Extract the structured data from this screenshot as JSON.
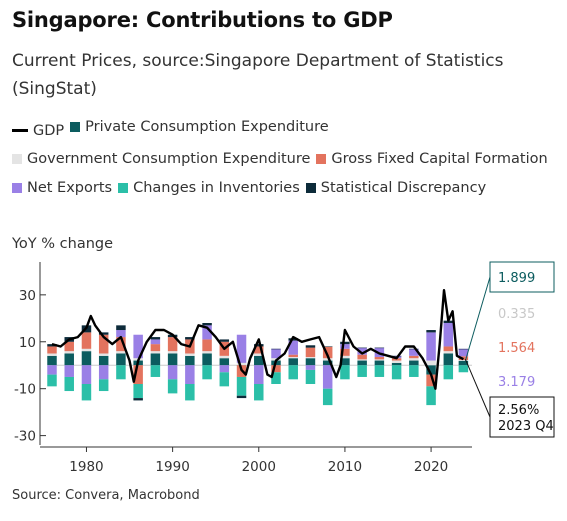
{
  "chart_data": {
    "type": "bar",
    "title": "Singapore: Contributions to GDP",
    "subtitle": "Current Prices, source:Singapore Department of Statistics (SingStat)",
    "ylabel": "YoY % change",
    "source": "Source: Convera, Macrobond",
    "ylim": [
      -34,
      44
    ],
    "xlim": [
      1976,
      2024.75
    ],
    "xticks": [
      1980,
      1990,
      2000,
      2010,
      2020
    ],
    "yticks": [
      30,
      10,
      -10,
      -30
    ],
    "grid": false,
    "legend_position": "top",
    "stacked": true,
    "series": [
      {
        "name": "GDP",
        "kind": "line",
        "color": "#000000",
        "x": [
          1976,
          1977,
          1978,
          1979,
          1980,
          1980.5,
          1981,
          1982,
          1983,
          1984,
          1985,
          1985.5,
          1986,
          1987,
          1988,
          1989,
          1990,
          1991,
          1992,
          1993,
          1994,
          1995,
          1996,
          1997,
          1998,
          1998.5,
          1999,
          2000,
          2001,
          2001.5,
          2002,
          2003,
          2004,
          2005,
          2006,
          2007,
          2008,
          2009,
          2009.5,
          2010,
          2011,
          2012,
          2013,
          2014,
          2015,
          2016,
          2017,
          2018,
          2019,
          2020,
          2020.5,
          2021,
          2021.5,
          2022,
          2022.5,
          2023,
          2023.75
        ],
        "y": [
          9,
          8,
          11,
          12,
          16,
          21,
          17,
          12,
          9,
          12,
          2,
          -7,
          2,
          10,
          15,
          15,
          13,
          9,
          8,
          17,
          16,
          12,
          7,
          10,
          -2,
          -4,
          3,
          11,
          -4,
          -5,
          2,
          5,
          12,
          10,
          11,
          12,
          4,
          -5,
          0,
          15,
          8,
          5,
          7,
          5,
          4,
          3,
          8,
          8,
          3,
          -4,
          -10,
          9,
          32,
          19,
          23,
          4,
          2.56
        ]
      },
      {
        "name": "Private Consumption Expenditure",
        "kind": "bar",
        "color": "#0c5c5f",
        "x": [
          1976,
          1978,
          1980,
          1982,
          1984,
          1986,
          1988,
          1990,
          1992,
          1994,
          1996,
          1998,
          2000,
          2002,
          2004,
          2006,
          2008,
          2010,
          2012,
          2014,
          2016,
          2018,
          2020,
          2022,
          2023.75
        ],
        "y": [
          4,
          5,
          6,
          4,
          5,
          2,
          5,
          5,
          4,
          5,
          3,
          0,
          4,
          2,
          3,
          3,
          2,
          3,
          2,
          2,
          1,
          2,
          -4,
          5,
          1.899
        ]
      },
      {
        "name": "Government Consumption Expenditure",
        "kind": "bar",
        "color": "#e4e4e4",
        "x": [
          1976,
          1978,
          1980,
          1982,
          1984,
          1986,
          1988,
          1990,
          1992,
          1994,
          1996,
          1998,
          2000,
          2002,
          2004,
          2006,
          2008,
          2010,
          2012,
          2014,
          2016,
          2018,
          2020,
          2022,
          2023.75
        ],
        "y": [
          1,
          1,
          1,
          1,
          1,
          1,
          1,
          1,
          1,
          1,
          1,
          1,
          1,
          1,
          0.5,
          0.5,
          1,
          1,
          0.5,
          0.5,
          1,
          1,
          2,
          1,
          0.335
        ]
      },
      {
        "name": "Gross Fixed Capital Formation",
        "kind": "bar",
        "color": "#e3735e",
        "x": [
          1976,
          1978,
          1980,
          1982,
          1984,
          1986,
          1988,
          1990,
          1992,
          1994,
          1996,
          1998,
          2000,
          2002,
          2004,
          2006,
          2008,
          2010,
          2012,
          2014,
          2016,
          2018,
          2020,
          2022,
          2023.75
        ],
        "y": [
          3,
          4,
          7,
          8,
          6,
          -8,
          3,
          6,
          6,
          5,
          6,
          -5,
          3,
          -3,
          1,
          4,
          5,
          3,
          2,
          1,
          1,
          1,
          -5,
          2,
          1.564
        ]
      },
      {
        "name": "Net Exports",
        "kind": "bar",
        "color": "#9a80e6",
        "x": [
          1976,
          1978,
          1980,
          1982,
          1984,
          1986,
          1988,
          1990,
          1992,
          1994,
          1996,
          1998,
          2000,
          2002,
          2004,
          2006,
          2008,
          2010,
          2012,
          2014,
          2016,
          2018,
          2020,
          2022,
          2023.75
        ],
        "y": [
          -4,
          -5,
          -8,
          -6,
          3,
          10,
          2,
          -6,
          -8,
          6,
          -3,
          12,
          -8,
          4,
          6,
          -2,
          -10,
          2,
          3,
          4,
          1,
          3,
          12,
          10,
          3.179
        ]
      },
      {
        "name": "Changes in Inventories",
        "kind": "bar",
        "color": "#2bbfa8",
        "x": [
          1976,
          1978,
          1980,
          1982,
          1984,
          1986,
          1988,
          1990,
          1992,
          1994,
          1996,
          1998,
          2000,
          2002,
          2004,
          2006,
          2008,
          2010,
          2012,
          2014,
          2016,
          2018,
          2020,
          2022,
          2023.75
        ],
        "y": [
          -5,
          -6,
          -7,
          -5,
          -6,
          -6,
          -5,
          -6,
          -7,
          -6,
          -6,
          -8,
          -7,
          -5,
          -6,
          -6,
          -7,
          -6,
          -5,
          -5,
          -6,
          -5,
          -8,
          -6,
          -3
        ]
      },
      {
        "name": "Statistical Discrepancy",
        "kind": "bar",
        "color": "#0d2b3a",
        "x": [
          1976,
          1978,
          1980,
          1982,
          1984,
          1986,
          1988,
          1990,
          1992,
          1994,
          1996,
          1998,
          2000,
          2002,
          2004,
          2006,
          2008,
          2010,
          2012,
          2014,
          2016,
          2018,
          2020,
          2022,
          2023.75
        ],
        "y": [
          1,
          2,
          3,
          1,
          2,
          -1,
          1,
          1,
          1,
          1,
          1,
          -1,
          1,
          0,
          1,
          1,
          0,
          1,
          0,
          0,
          0,
          0,
          1,
          1,
          0
        ]
      }
    ],
    "annotations": [
      {
        "text": "1.899",
        "y": 1.899,
        "color": "#0c5c5f",
        "boxed": true,
        "box_color": "#0c5c5f"
      },
      {
        "text": "0.335",
        "y": 0.335,
        "color": "#c8c8c8",
        "boxed": false
      },
      {
        "text": "1.564",
        "y": 1.564,
        "color": "#e3735e",
        "boxed": false
      },
      {
        "text": "3.179",
        "y": 3.179,
        "color": "#9a80e6",
        "boxed": false
      },
      {
        "text": "2.56%",
        "text2": "2023 Q4",
        "y": 2.56,
        "color": "#111111",
        "boxed": true,
        "box_color": "#111111"
      }
    ]
  }
}
